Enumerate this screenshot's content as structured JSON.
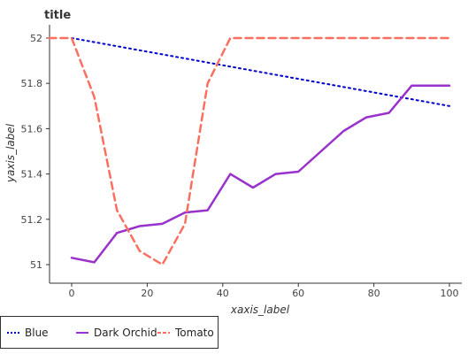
{
  "chart_data": {
    "type": "line",
    "title": "title",
    "xlabel": "xaxis_label",
    "ylabel": "yaxis_label",
    "xlim": [
      0,
      100
    ],
    "ylim": [
      51,
      52
    ],
    "xticks": [
      "0",
      "20",
      "40",
      "60",
      "80",
      "100"
    ],
    "yticks": [
      "51",
      "51.2",
      "51.4",
      "51.6",
      "51.8",
      "52"
    ],
    "grid": false,
    "legend_position": "bottom",
    "series": [
      {
        "name": "Blue",
        "color": "#0000cc",
        "style": "dotted",
        "x": [
          0,
          100
        ],
        "y": [
          52.0,
          51.7
        ]
      },
      {
        "name": "Dark Orchid",
        "color": "#9932cc",
        "style": "solid",
        "x": [
          0,
          6,
          12,
          18,
          24,
          30,
          36,
          42,
          48,
          54,
          60,
          66,
          72,
          78,
          84,
          90,
          96,
          100
        ],
        "y": [
          51.03,
          51.01,
          51.14,
          51.17,
          51.18,
          51.23,
          51.24,
          51.4,
          51.34,
          51.4,
          51.41,
          51.5,
          51.59,
          51.65,
          51.67,
          51.79,
          51.79,
          51.79
        ]
      },
      {
        "name": "Tomato",
        "color": "#fa7060",
        "style": "dashed",
        "x": [
          -6,
          0,
          6,
          12,
          18,
          24,
          30,
          36,
          42,
          48,
          54,
          60,
          66,
          72,
          78,
          84,
          90,
          96,
          100
        ],
        "y": [
          52.0,
          52.0,
          51.74,
          51.24,
          51.06,
          51.0,
          51.18,
          51.8,
          52.0,
          52.0,
          52.0,
          52.0,
          52.0,
          52.0,
          52.0,
          52.0,
          52.0,
          52.0,
          52.0
        ]
      }
    ]
  }
}
